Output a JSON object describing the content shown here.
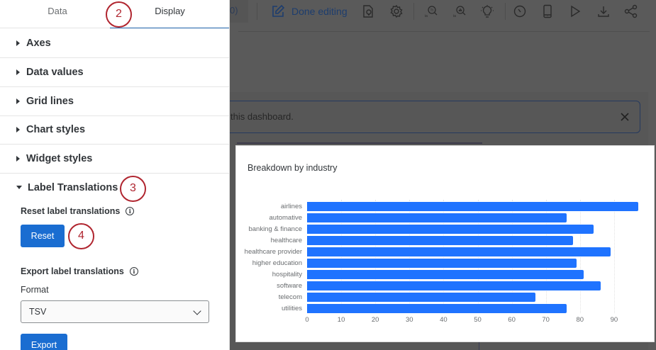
{
  "panel": {
    "tabs": [
      {
        "label": "Data",
        "active": false
      },
      {
        "label": "Display",
        "active": true
      }
    ],
    "sections": [
      {
        "label": "Axes",
        "expanded": false
      },
      {
        "label": "Data values",
        "expanded": false
      },
      {
        "label": "Grid lines",
        "expanded": false
      },
      {
        "label": "Chart styles",
        "expanded": false
      },
      {
        "label": "Widget styles",
        "expanded": false
      },
      {
        "label": "Label Translations",
        "expanded": true
      }
    ],
    "label_translations": {
      "reset_heading": "Reset label translations",
      "reset_button": "Reset",
      "export_heading": "Export label translations",
      "format_label": "Format",
      "format_value": "TSV",
      "export_button": "Export",
      "info_glyph": "i"
    },
    "steps": [
      "2",
      "3",
      "4"
    ]
  },
  "toolbar": {
    "prev_fragment": "0)",
    "done_editing": "Done editing",
    "icons": [
      "done-editing-icon",
      "lightbulb-document-icon",
      "gear-icon",
      "translate-search-icon",
      "chart-search-icon",
      "lightbulb-icon",
      "clock-icon",
      "mobile-icon",
      "play-icon",
      "download-icon",
      "share-icon"
    ]
  },
  "notice": {
    "text": "this dashboard.",
    "close": "close-icon"
  },
  "colors": {
    "accent": "#1a6dd1",
    "bar": "#1f73ff",
    "step_callout": "#b0252f",
    "overlay": "#585858"
  },
  "chart_data": {
    "type": "bar",
    "orientation": "horizontal",
    "title": "Breakdown by industry",
    "categories": [
      "airlines",
      "automative",
      "banking & finance",
      "healthcare",
      "healthcare provider",
      "higher education",
      "hospitality",
      "software",
      "telecom",
      "utilities"
    ],
    "values": [
      97,
      76,
      84,
      78,
      89,
      79,
      81,
      86,
      67,
      76
    ],
    "xlabel": "",
    "ylabel": "",
    "xlim": [
      0,
      100
    ],
    "ticks": [
      "0",
      "10",
      "20",
      "30",
      "40",
      "50",
      "60",
      "70",
      "80",
      "90"
    ],
    "grid": true,
    "legend": "none"
  }
}
